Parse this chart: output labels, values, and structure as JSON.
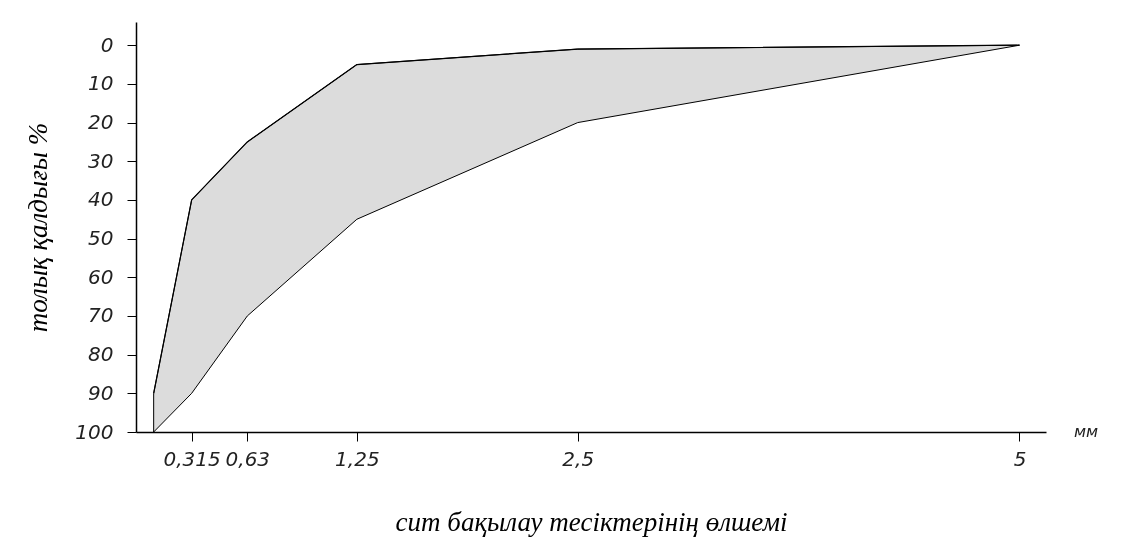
{
  "chart_data": {
    "type": "line",
    "xlabel": "сит бақылау тесіктерінің өлшемі",
    "ylabel": "толық қалдығы %",
    "annotations": [
      "мм"
    ],
    "x": [
      0.1,
      0.315,
      0.63,
      1.25,
      2.5,
      5
    ],
    "series": [
      {
        "color": "#000000",
        "values": [
          90,
          40,
          25,
          5,
          1,
          0
        ],
        "lower": [
          90,
          40,
          25,
          5,
          1,
          0
        ],
        "upper": [
          100,
          90,
          70,
          45,
          20,
          0
        ]
      }
    ],
    "xlim": [
      0,
      5.15
    ],
    "xticks": [
      {
        "value": 0.315,
        "label": "0,315"
      },
      {
        "value": 0.63,
        "label": "0,63"
      },
      {
        "value": 1.25,
        "label": "1,25"
      },
      {
        "value": 2.5,
        "label": "2,5"
      },
      5
    ],
    "ylim": [
      100,
      -6
    ],
    "yticks": [
      0,
      10,
      20,
      30,
      40,
      50,
      60,
      70,
      80,
      90,
      100
    ],
    "grid": false,
    "legend": false,
    "marker": "none",
    "line_style": "solid"
  }
}
